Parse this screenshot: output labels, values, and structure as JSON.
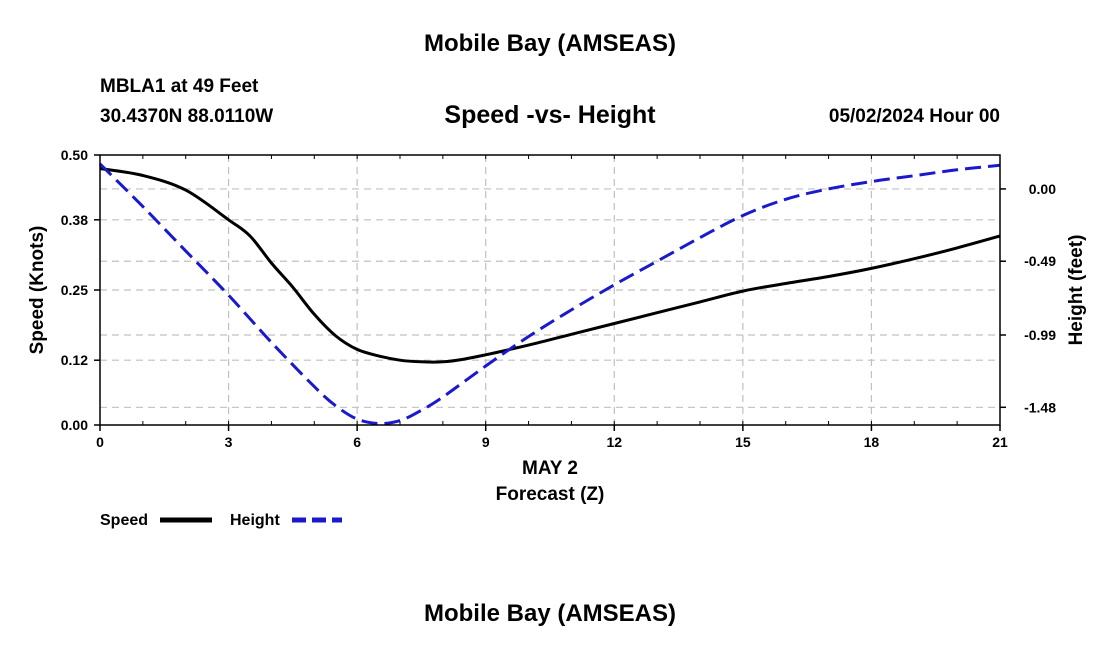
{
  "header": {
    "main_title": "Mobile Bay (AMSEAS)",
    "station": "MBLA1 at 49 Feet",
    "coords": "30.4370N  88.0110W",
    "chart_title": "Speed -vs- Height",
    "datetime": "05/02/2024 Hour 00"
  },
  "footer": {
    "main_title": "Mobile Bay (AMSEAS)"
  },
  "chart_data": {
    "type": "line",
    "title": "Speed -vs- Height",
    "xlabel": "Forecast (Z)",
    "xdate_label": "MAY 2",
    "ylabel": "Speed (Knots)",
    "y2label": "Height (feet)",
    "xlim": [
      0,
      21
    ],
    "ylim": [
      0,
      0.5
    ],
    "y2lim": [
      -1.6,
      0.23
    ],
    "x_ticks": [
      "0",
      "3",
      "6",
      "9",
      "12",
      "15",
      "18",
      "21"
    ],
    "y_ticks": [
      "0.00",
      "0.12",
      "0.25",
      "0.38",
      "0.50"
    ],
    "y2_ticks": [
      "0.00",
      "-0.49",
      "-0.99",
      "-1.48"
    ],
    "grid": true,
    "legend_position": "bottom-left",
    "colors": {
      "speed": "#000000",
      "height": "#1a1acc",
      "grid": "#c0c0c0"
    },
    "series": [
      {
        "name": "Speed",
        "axis": "left",
        "style": "solid",
        "x": [
          0,
          1,
          2,
          3,
          3.5,
          4,
          4.5,
          5,
          5.5,
          6,
          6.5,
          7,
          7.5,
          8,
          8.5,
          9,
          10,
          11,
          12,
          13,
          14,
          15,
          16,
          17,
          18,
          19,
          20,
          21
        ],
        "values": [
          0.475,
          0.462,
          0.435,
          0.38,
          0.35,
          0.3,
          0.255,
          0.205,
          0.165,
          0.14,
          0.128,
          0.12,
          0.117,
          0.117,
          0.122,
          0.13,
          0.148,
          0.168,
          0.188,
          0.208,
          0.228,
          0.248,
          0.262,
          0.275,
          0.29,
          0.308,
          0.328,
          0.35
        ]
      },
      {
        "name": "Height",
        "axis": "right",
        "style": "dashed",
        "x": [
          0,
          1,
          2,
          3,
          4,
          5,
          5.5,
          6,
          6.5,
          7,
          7.5,
          8,
          9,
          10,
          11,
          12,
          13,
          14,
          15,
          16,
          17,
          18,
          19,
          20,
          21
        ],
        "values": [
          0.17,
          -0.12,
          -0.42,
          -0.72,
          -1.04,
          -1.34,
          -1.47,
          -1.56,
          -1.59,
          -1.57,
          -1.5,
          -1.41,
          -1.2,
          -1.0,
          -0.82,
          -0.65,
          -0.49,
          -0.33,
          -0.18,
          -0.07,
          0.0,
          0.05,
          0.09,
          0.13,
          0.16
        ]
      }
    ]
  }
}
